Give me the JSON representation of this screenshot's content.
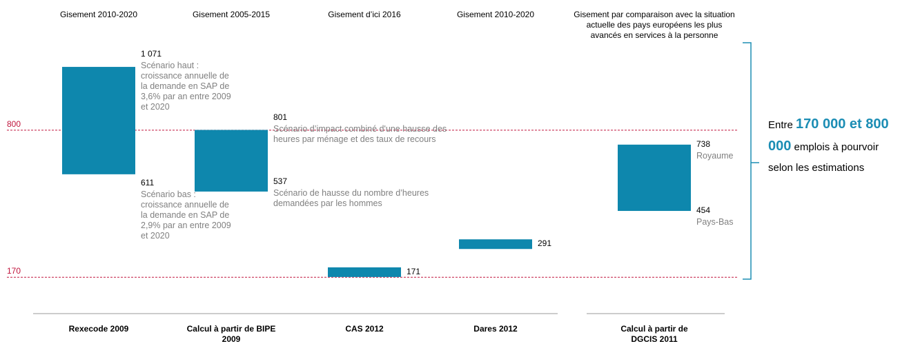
{
  "chart_data": {
    "type": "floating-bar",
    "categories": [
      "Gisement 2010-2020",
      "Gisement 2005-2015",
      "Gisement d’ici 2016",
      "Gisement 2010-2020",
      "Gisement par comparaison avec la situation actuelle des pays européens les plus avancés en services à la personne"
    ],
    "sources": [
      "Rexecode 2009",
      "Calcul à partir de BIPE 2009",
      "CAS 2012",
      "Dares 2012",
      "Calcul à partir de DGCIS 2011"
    ],
    "high": [
      1071,
      801,
      171,
      291,
      738
    ],
    "value_labels": [
      "1 071",
      "801",
      "171",
      "291",
      "738"
    ],
    "low": [
      611,
      537,
      null,
      null,
      454
    ],
    "high_notes": [
      "Scénario haut : croissance annuelle de la demande en SAP de 3,6% par an entre 2009 et 2020",
      "Scénario d’impact combiné d'une hausse des heures par ménage et des taux de recours",
      null,
      null,
      "Royaume"
    ],
    "low_notes": [
      "Scénario bas : croissance annuelle de la demande en SAP de 2,9% par an entre 2009 et 2020",
      "Scénario de hausse du nombre d’heures demandées par les hommes",
      null,
      null,
      "Pays-Bas"
    ],
    "color": "#0e87ad",
    "ref_lines": [
      800,
      170
    ],
    "ref_color": "#c0143c",
    "annotation": {
      "prefix": "Entre ",
      "highlight": "170 000 et 800 000",
      "suffix": " emplois à pourvoir selon les estimations"
    }
  }
}
